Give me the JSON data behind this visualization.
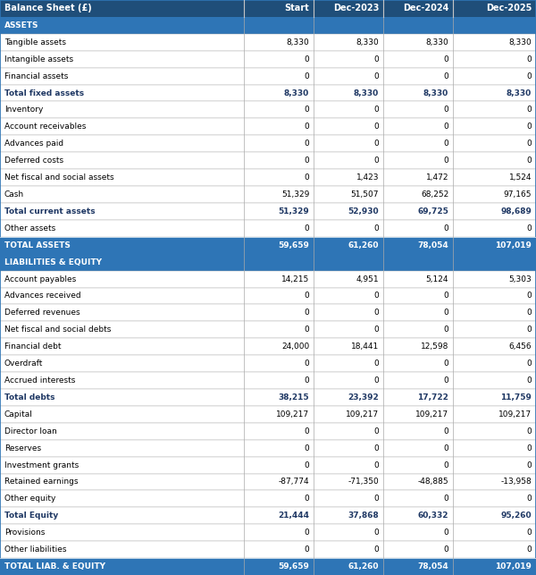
{
  "header": [
    "Balance Sheet (£)",
    "Start",
    "Dec-2023",
    "Dec-2024",
    "Dec-2025"
  ],
  "sections": [
    {
      "label": "ASSETS",
      "type": "section_header"
    },
    {
      "label": "Tangible assets",
      "values": [
        "8,330",
        "8,330",
        "8,330",
        "8,330"
      ],
      "type": "normal"
    },
    {
      "label": "Intangible assets",
      "values": [
        "0",
        "0",
        "0",
        "0"
      ],
      "type": "normal"
    },
    {
      "label": "Financial assets",
      "values": [
        "0",
        "0",
        "0",
        "0"
      ],
      "type": "normal"
    },
    {
      "label": "Total fixed assets",
      "values": [
        "8,330",
        "8,330",
        "8,330",
        "8,330"
      ],
      "type": "bold"
    },
    {
      "label": "Inventory",
      "values": [
        "0",
        "0",
        "0",
        "0"
      ],
      "type": "normal"
    },
    {
      "label": "Account receivables",
      "values": [
        "0",
        "0",
        "0",
        "0"
      ],
      "type": "normal"
    },
    {
      "label": "Advances paid",
      "values": [
        "0",
        "0",
        "0",
        "0"
      ],
      "type": "normal"
    },
    {
      "label": "Deferred costs",
      "values": [
        "0",
        "0",
        "0",
        "0"
      ],
      "type": "normal"
    },
    {
      "label": "Net fiscal and social assets",
      "values": [
        "0",
        "1,423",
        "1,472",
        "1,524"
      ],
      "type": "normal"
    },
    {
      "label": "Cash",
      "values": [
        "51,329",
        "51,507",
        "68,252",
        "97,165"
      ],
      "type": "normal"
    },
    {
      "label": "Total current assets",
      "values": [
        "51,329",
        "52,930",
        "69,725",
        "98,689"
      ],
      "type": "bold"
    },
    {
      "label": "Other assets",
      "values": [
        "0",
        "0",
        "0",
        "0"
      ],
      "type": "normal"
    },
    {
      "label": "TOTAL ASSETS",
      "values": [
        "59,659",
        "61,260",
        "78,054",
        "107,019"
      ],
      "type": "total"
    },
    {
      "label": "LIABILITIES & EQUITY",
      "type": "section_header"
    },
    {
      "label": "Account payables",
      "values": [
        "14,215",
        "4,951",
        "5,124",
        "5,303"
      ],
      "type": "normal"
    },
    {
      "label": "Advances received",
      "values": [
        "0",
        "0",
        "0",
        "0"
      ],
      "type": "normal"
    },
    {
      "label": "Deferred revenues",
      "values": [
        "0",
        "0",
        "0",
        "0"
      ],
      "type": "normal"
    },
    {
      "label": "Net fiscal and social debts",
      "values": [
        "0",
        "0",
        "0",
        "0"
      ],
      "type": "normal"
    },
    {
      "label": "Financial debt",
      "values": [
        "24,000",
        "18,441",
        "12,598",
        "6,456"
      ],
      "type": "normal"
    },
    {
      "label": "Overdraft",
      "values": [
        "0",
        "0",
        "0",
        "0"
      ],
      "type": "normal"
    },
    {
      "label": "Accrued interests",
      "values": [
        "0",
        "0",
        "0",
        "0"
      ],
      "type": "normal"
    },
    {
      "label": "Total debts",
      "values": [
        "38,215",
        "23,392",
        "17,722",
        "11,759"
      ],
      "type": "bold"
    },
    {
      "label": "Capital",
      "values": [
        "109,217",
        "109,217",
        "109,217",
        "109,217"
      ],
      "type": "normal"
    },
    {
      "label": "Director loan",
      "values": [
        "0",
        "0",
        "0",
        "0"
      ],
      "type": "normal"
    },
    {
      "label": "Reserves",
      "values": [
        "0",
        "0",
        "0",
        "0"
      ],
      "type": "normal"
    },
    {
      "label": "Investment grants",
      "values": [
        "0",
        "0",
        "0",
        "0"
      ],
      "type": "normal"
    },
    {
      "label": "Retained earnings",
      "values": [
        "-87,774",
        "-71,350",
        "-48,885",
        "-13,958"
      ],
      "type": "normal"
    },
    {
      "label": "Other equity",
      "values": [
        "0",
        "0",
        "0",
        "0"
      ],
      "type": "normal"
    },
    {
      "label": "Total Equity",
      "values": [
        "21,444",
        "37,868",
        "60,332",
        "95,260"
      ],
      "type": "bold"
    },
    {
      "label": "Provisions",
      "values": [
        "0",
        "0",
        "0",
        "0"
      ],
      "type": "normal"
    },
    {
      "label": "Other liabilities",
      "values": [
        "0",
        "0",
        "0",
        "0"
      ],
      "type": "normal"
    },
    {
      "label": "TOTAL LIAB. & EQUITY",
      "values": [
        "59,659",
        "61,260",
        "78,054",
        "107,019"
      ],
      "type": "total"
    }
  ],
  "header_bg": "#1F4E79",
  "header_text": "#FFFFFF",
  "section_bg": "#2E75B6",
  "section_text": "#FFFFFF",
  "total_bg": "#2E75B6",
  "total_text": "#FFFFFF",
  "bold_text_color": "#1F3864",
  "normal_text_color": "#000000",
  "row_bg_normal": "#FFFFFF",
  "border_color": "#2E75B6",
  "sep_color": "#AAAAAA",
  "col_starts": [
    0.0,
    0.455,
    0.585,
    0.715,
    0.845
  ],
  "col_ends": [
    0.455,
    0.585,
    0.715,
    0.845,
    1.0
  ],
  "font_size": 6.5,
  "header_font_size": 7.0
}
